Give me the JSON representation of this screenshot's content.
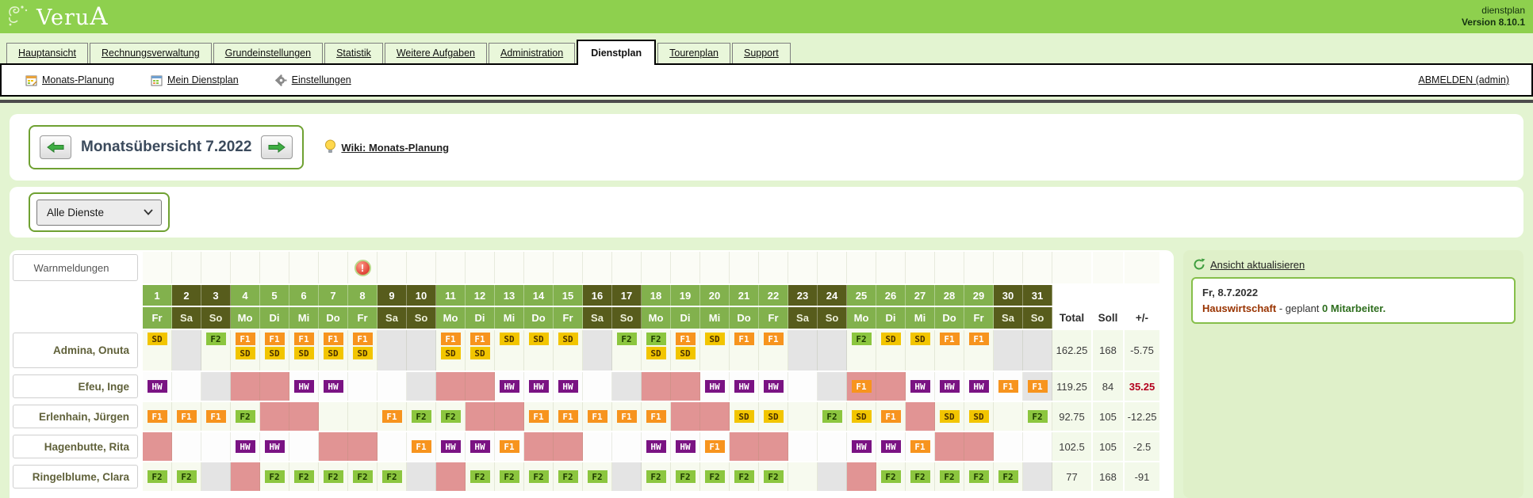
{
  "header": {
    "logo_pre": "Veru",
    "logo_a": "A",
    "app_line1": "dienstplan",
    "app_line2": "Version 8.10.1"
  },
  "tabs": [
    {
      "label": "Hauptansicht",
      "active": false
    },
    {
      "label": "Rechnungsverwaltung",
      "active": false
    },
    {
      "label": "Grundeinstellungen",
      "active": false
    },
    {
      "label": "Statistik",
      "active": false
    },
    {
      "label": "Weitere Aufgaben",
      "active": false
    },
    {
      "label": "Administration",
      "active": false
    },
    {
      "label": "Dienstplan",
      "active": true
    },
    {
      "label": "Tourenplan",
      "active": false
    },
    {
      "label": "Support",
      "active": false
    }
  ],
  "subnav": {
    "items": [
      {
        "label": "Monats-Planung",
        "icon": "calendar-edit-icon"
      },
      {
        "label": "Mein Dienstplan",
        "icon": "calendar-grid-icon"
      },
      {
        "label": "Einstellungen",
        "icon": "gear-icon"
      }
    ],
    "logout": "ABMELDEN (admin)"
  },
  "month_nav": {
    "title": "Monatsübersicht 7.2022",
    "wiki_link": "Wiki: Monats-Planung"
  },
  "filter": {
    "selected": "Alle Dienste"
  },
  "side_panel": {
    "refresh_label": "Ansicht aktualisieren",
    "info_date": "Fr, 8.7.2022",
    "info_dept": "Hauswirtschaft",
    "info_sep": " - geplant ",
    "info_bold": "0 Mitarbeiter."
  },
  "colors": {
    "header_green": "#8ed04e",
    "page_bg": "#e3f4d1",
    "weekday_header": "#82b14d",
    "weekend_header": "#575c1c",
    "absence_pink": "#e19494",
    "empty_gray": "#e4e4e4",
    "row_light": "#f7faef",
    "row_white": "#fdfdfd",
    "warn_row_bg": "#fbfcf6",
    "summary_bg": "#f3f9ea"
  },
  "shift_types": {
    "SD": {
      "bg": "#f2c500",
      "fg": "#4a3000"
    },
    "F1": {
      "bg": "#f7941e",
      "fg": "#ffffff"
    },
    "F2": {
      "bg": "#8cc63f",
      "fg": "#1e3a00"
    },
    "HW": {
      "bg": "#7a1383",
      "fg": "#ffffff"
    }
  },
  "roster": {
    "warn_label": "Warnmeldungen",
    "warning_day": 8,
    "weekdays": [
      "Fr",
      "Sa",
      "So",
      "Mo",
      "Di",
      "Mi",
      "Do",
      "Fr",
      "Sa",
      "So",
      "Mo",
      "Di",
      "Mi",
      "Do",
      "Fr",
      "Sa",
      "So",
      "Mo",
      "Di",
      "Mi",
      "Do",
      "Fr",
      "Sa",
      "So",
      "Mo",
      "Di",
      "Mi",
      "Do",
      "Fr",
      "Sa",
      "So"
    ],
    "summary_headers": [
      "Total",
      "Soll",
      "+/-"
    ],
    "employees": [
      {
        "name": "Admina, Onuta",
        "shade": "light",
        "tall": true,
        "total": "162.25",
        "soll": "168",
        "diff": "-5.75",
        "diff_red": false,
        "cells": [
          {
            "s": [
              "SD"
            ]
          },
          {
            "bg": "gray"
          },
          {
            "s": [
              "F2"
            ]
          },
          {
            "s": [
              "F1",
              "SD"
            ]
          },
          {
            "s": [
              "F1",
              "SD"
            ]
          },
          {
            "s": [
              "F1",
              "SD"
            ]
          },
          {
            "s": [
              "F1",
              "SD"
            ]
          },
          {
            "s": [
              "F1",
              "SD"
            ]
          },
          {
            "bg": "gray"
          },
          {
            "bg": "gray"
          },
          {
            "s": [
              "F1",
              "SD"
            ]
          },
          {
            "s": [
              "F1",
              "SD"
            ]
          },
          {
            "s": [
              "SD"
            ]
          },
          {
            "s": [
              "SD"
            ]
          },
          {
            "s": [
              "SD"
            ]
          },
          {
            "bg": "gray"
          },
          {
            "s": [
              "F2"
            ]
          },
          {
            "s": [
              "F2",
              "SD"
            ]
          },
          {
            "s": [
              "F1",
              "SD"
            ]
          },
          {
            "s": [
              "SD"
            ]
          },
          {
            "s": [
              "F1"
            ]
          },
          {
            "s": [
              "F1"
            ]
          },
          {
            "bg": "gray"
          },
          {
            "bg": "gray"
          },
          {
            "s": [
              "F2"
            ]
          },
          {
            "s": [
              "SD"
            ]
          },
          {
            "s": [
              "SD"
            ]
          },
          {
            "s": [
              "F1"
            ]
          },
          {
            "s": [
              "F1"
            ]
          },
          {
            "bg": "gray"
          },
          {
            "bg": "gray"
          }
        ]
      },
      {
        "name": "Efeu, Inge",
        "shade": "white",
        "tall": false,
        "total": "119.25",
        "soll": "84",
        "diff": "35.25",
        "diff_red": true,
        "cells": [
          {
            "s": [
              "HW"
            ]
          },
          {},
          {
            "bg": "gray"
          },
          {
            "bg": "pink"
          },
          {
            "bg": "pink"
          },
          {
            "s": [
              "HW"
            ]
          },
          {
            "s": [
              "HW"
            ]
          },
          {},
          {},
          {
            "bg": "gray"
          },
          {
            "bg": "pink"
          },
          {
            "bg": "pink"
          },
          {
            "s": [
              "HW"
            ]
          },
          {
            "s": [
              "HW"
            ]
          },
          {
            "s": [
              "HW"
            ]
          },
          {},
          {
            "bg": "gray"
          },
          {
            "bg": "pink"
          },
          {
            "bg": "pink"
          },
          {
            "s": [
              "HW"
            ]
          },
          {
            "s": [
              "HW"
            ]
          },
          {
            "s": [
              "HW"
            ]
          },
          {},
          {
            "bg": "gray"
          },
          {
            "s": [
              "F1"
            ],
            "bg": "pink"
          },
          {
            "bg": "pink"
          },
          {
            "s": [
              "HW"
            ]
          },
          {
            "s": [
              "HW"
            ]
          },
          {
            "s": [
              "HW"
            ]
          },
          {
            "s": [
              "F1"
            ]
          },
          {
            "s": [
              "F1"
            ],
            "bg": "gray"
          }
        ]
      },
      {
        "name": "Erlenhain, Jürgen",
        "shade": "light",
        "tall": false,
        "total": "92.75",
        "soll": "105",
        "diff": "-12.25",
        "diff_red": false,
        "cells": [
          {
            "s": [
              "F1"
            ]
          },
          {
            "s": [
              "F1"
            ]
          },
          {
            "s": [
              "F1"
            ]
          },
          {
            "s": [
              "F2"
            ]
          },
          {
            "bg": "pink"
          },
          {
            "bg": "pink"
          },
          {},
          {},
          {
            "s": [
              "F1"
            ]
          },
          {
            "s": [
              "F2"
            ]
          },
          {
            "s": [
              "F2"
            ]
          },
          {
            "bg": "pink"
          },
          {
            "bg": "pink"
          },
          {
            "s": [
              "F1"
            ]
          },
          {
            "s": [
              "F1"
            ]
          },
          {
            "s": [
              "F1"
            ]
          },
          {
            "s": [
              "F1"
            ]
          },
          {
            "s": [
              "F1"
            ]
          },
          {
            "bg": "pink"
          },
          {
            "bg": "pink"
          },
          {
            "s": [
              "SD"
            ]
          },
          {
            "s": [
              "SD"
            ]
          },
          {},
          {
            "s": [
              "F2"
            ]
          },
          {
            "s": [
              "SD"
            ]
          },
          {
            "s": [
              "F1"
            ]
          },
          {
            "bg": "pink"
          },
          {
            "s": [
              "SD"
            ]
          },
          {
            "s": [
              "SD"
            ]
          },
          {},
          {
            "s": [
              "F2"
            ]
          }
        ]
      },
      {
        "name": "Hagenbutte, Rita",
        "shade": "white",
        "tall": false,
        "total": "102.5",
        "soll": "105",
        "diff": "-2.5",
        "diff_red": false,
        "cells": [
          {
            "bg": "pink"
          },
          {},
          {},
          {
            "s": [
              "HW"
            ]
          },
          {
            "s": [
              "HW"
            ]
          },
          {},
          {
            "bg": "pink"
          },
          {
            "bg": "pink"
          },
          {},
          {
            "s": [
              "F1"
            ]
          },
          {
            "s": [
              "HW"
            ]
          },
          {
            "s": [
              "HW"
            ]
          },
          {
            "s": [
              "F1"
            ]
          },
          {
            "bg": "pink"
          },
          {
            "bg": "pink"
          },
          {},
          {},
          {
            "s": [
              "HW"
            ]
          },
          {
            "s": [
              "HW"
            ]
          },
          {
            "s": [
              "F1"
            ]
          },
          {
            "bg": "pink"
          },
          {
            "bg": "pink"
          },
          {},
          {},
          {
            "s": [
              "HW"
            ]
          },
          {
            "s": [
              "HW"
            ]
          },
          {
            "s": [
              "F1"
            ]
          },
          {
            "bg": "pink"
          },
          {
            "bg": "pink"
          },
          {},
          {}
        ]
      },
      {
        "name": "Ringelblume, Clara",
        "shade": "light",
        "tall": false,
        "total": "77",
        "soll": "168",
        "diff": "-91",
        "diff_red": false,
        "cells": [
          {
            "s": [
              "F2"
            ]
          },
          {
            "s": [
              "F2"
            ]
          },
          {
            "bg": "gray"
          },
          {
            "bg": "pink"
          },
          {
            "s": [
              "F2"
            ]
          },
          {
            "s": [
              "F2"
            ]
          },
          {
            "s": [
              "F2"
            ]
          },
          {
            "s": [
              "F2"
            ]
          },
          {
            "s": [
              "F2"
            ]
          },
          {
            "bg": "gray"
          },
          {
            "bg": "pink"
          },
          {
            "s": [
              "F2"
            ]
          },
          {
            "s": [
              "F2"
            ]
          },
          {
            "s": [
              "F2"
            ]
          },
          {
            "s": [
              "F2"
            ]
          },
          {
            "s": [
              "F2"
            ]
          },
          {
            "bg": "gray"
          },
          {
            "s": [
              "F2"
            ]
          },
          {
            "s": [
              "F2"
            ]
          },
          {
            "s": [
              "F2"
            ]
          },
          {
            "s": [
              "F2"
            ]
          },
          {
            "s": [
              "F2"
            ]
          },
          {},
          {
            "bg": "gray"
          },
          {
            "bg": "pink"
          },
          {
            "s": [
              "F2"
            ]
          },
          {
            "s": [
              "F2"
            ]
          },
          {
            "s": [
              "F2"
            ]
          },
          {
            "s": [
              "F2"
            ]
          },
          {
            "s": [
              "F2"
            ]
          },
          {
            "bg": "gray"
          }
        ]
      }
    ]
  }
}
